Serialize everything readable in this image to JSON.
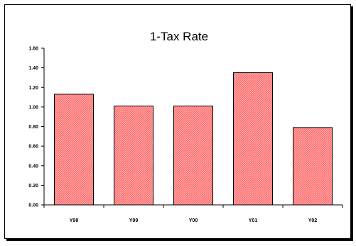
{
  "chart_data": {
    "type": "bar",
    "title": "1-Tax Rate",
    "categories": [
      "Y98",
      "Y99",
      "Y00",
      "Y01",
      "Y02"
    ],
    "values": [
      1.13,
      1.01,
      1.01,
      1.35,
      0.79
    ],
    "ylim": [
      0,
      1.6
    ],
    "yticks": [
      "0.00",
      "0.20",
      "0.40",
      "0.60",
      "0.80",
      "1.00",
      "1.20",
      "1.40",
      "1.60"
    ],
    "bar_color": "#ff6f6f",
    "bar_border": "#000000"
  }
}
